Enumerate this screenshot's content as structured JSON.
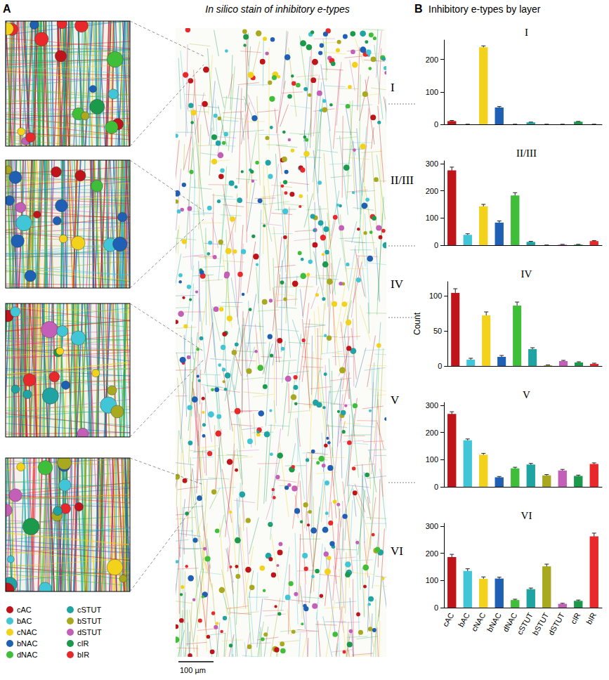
{
  "figure": {
    "panel_a": {
      "letter": "A",
      "title": "In silico stain of inhibitory e-types",
      "layers": [
        "I",
        "II/III",
        "IV",
        "V",
        "VI"
      ],
      "scale_bar": "100 µm",
      "legend_items": [
        {
          "name": "cAC",
          "color": "#c0141b"
        },
        {
          "name": "bAC",
          "color": "#40c6d6"
        },
        {
          "name": "cNAC",
          "color": "#f2d21a"
        },
        {
          "name": "bNAC",
          "color": "#1f5fb4"
        },
        {
          "name": "dNAC",
          "color": "#3fbe3a"
        },
        {
          "name": "cSTUT",
          "color": "#1fa3a3"
        },
        {
          "name": "bSTUT",
          "color": "#a9a920"
        },
        {
          "name": "dSTUT",
          "color": "#c45fb8"
        },
        {
          "name": "cIR",
          "color": "#1a9a4a"
        },
        {
          "name": "bIR",
          "color": "#e8282a"
        }
      ]
    },
    "panel_b": {
      "letter": "B",
      "title": "Inhibitory e-types by layer"
    }
  },
  "chart_data": [
    {
      "type": "bar",
      "title": "I",
      "categories": [
        "cAC",
        "bAC",
        "cNAC",
        "bNAC",
        "dNAC",
        "cSTUT",
        "bSTUT",
        "dSTUT",
        "cIR",
        "bIR"
      ],
      "values": [
        10,
        0,
        238,
        52,
        0,
        6,
        0,
        0,
        8,
        0
      ],
      "errors": [
        2,
        0,
        4,
        3,
        0,
        1,
        0,
        0,
        1,
        0
      ],
      "colors": [
        "#c0141b",
        "#40c6d6",
        "#f2d21a",
        "#1f5fb4",
        "#3fbe3a",
        "#1fa3a3",
        "#a9a920",
        "#c45fb8",
        "#1a9a4a",
        "#e8282a"
      ],
      "ylim": [
        0,
        260
      ],
      "yticks": [
        0,
        100,
        200
      ],
      "tick_labels": "y"
    },
    {
      "type": "bar",
      "title": "II/III",
      "categories": [
        "cAC",
        "bAC",
        "cNAC",
        "bNAC",
        "dNAC",
        "cSTUT",
        "bSTUT",
        "dSTUT",
        "cIR",
        "bIR"
      ],
      "values": [
        275,
        38,
        143,
        83,
        183,
        12,
        0,
        2,
        2,
        15
      ],
      "errors": [
        12,
        4,
        7,
        6,
        10,
        2,
        0,
        1,
        1,
        2
      ],
      "colors": [
        "#c0141b",
        "#40c6d6",
        "#f2d21a",
        "#1f5fb4",
        "#3fbe3a",
        "#1fa3a3",
        "#a9a920",
        "#c45fb8",
        "#1a9a4a",
        "#e8282a"
      ],
      "ylim": [
        0,
        310
      ],
      "yticks": [
        0,
        100,
        200,
        300
      ],
      "tick_labels": "y"
    },
    {
      "type": "bar",
      "title": "IV",
      "y_label": "Count",
      "categories": [
        "cAC",
        "bAC",
        "cNAC",
        "bNAC",
        "dNAC",
        "cSTUT",
        "bSTUT",
        "dSTUT",
        "cIR",
        "bIR"
      ],
      "values": [
        104,
        9,
        72,
        13,
        86,
        24,
        1,
        7,
        5,
        3
      ],
      "errors": [
        6,
        2,
        5,
        2,
        5,
        2,
        0.5,
        1,
        1,
        1
      ],
      "colors": [
        "#c0141b",
        "#40c6d6",
        "#f2d21a",
        "#1f5fb4",
        "#3fbe3a",
        "#1fa3a3",
        "#a9a920",
        "#c45fb8",
        "#1a9a4a",
        "#e8282a"
      ],
      "ylim": [
        0,
        120
      ],
      "yticks": [
        0,
        50,
        100
      ],
      "tick_labels": "y"
    },
    {
      "type": "bar",
      "title": "V",
      "categories": [
        "cAC",
        "bAC",
        "cNAC",
        "bNAC",
        "dNAC",
        "cSTUT",
        "bSTUT",
        "dSTUT",
        "cIR",
        "bIR"
      ],
      "values": [
        268,
        171,
        118,
        35,
        68,
        82,
        42,
        60,
        40,
        84
      ],
      "errors": [
        8,
        5,
        5,
        3,
        4,
        4,
        3,
        4,
        3,
        4
      ],
      "colors": [
        "#c0141b",
        "#40c6d6",
        "#f2d21a",
        "#1f5fb4",
        "#3fbe3a",
        "#1fa3a3",
        "#a9a920",
        "#c45fb8",
        "#1a9a4a",
        "#e8282a"
      ],
      "ylim": [
        0,
        310
      ],
      "yticks": [
        0,
        100,
        200,
        300
      ],
      "tick_labels": "y"
    },
    {
      "type": "bar",
      "title": "VI",
      "categories": [
        "cAC",
        "bAC",
        "cNAC",
        "bNAC",
        "dNAC",
        "cSTUT",
        "bSTUT",
        "dSTUT",
        "cIR",
        "bIR"
      ],
      "values": [
        186,
        135,
        106,
        107,
        28,
        68,
        152,
        14,
        25,
        262
      ],
      "errors": [
        10,
        8,
        7,
        5,
        3,
        4,
        8,
        2,
        3,
        12
      ],
      "colors": [
        "#c0141b",
        "#40c6d6",
        "#f2d21a",
        "#1f5fb4",
        "#3fbe3a",
        "#1fa3a3",
        "#a9a920",
        "#c45fb8",
        "#1a9a4a",
        "#e8282a"
      ],
      "ylim": [
        0,
        310
      ],
      "yticks": [
        0,
        100,
        200,
        300
      ]
    }
  ]
}
